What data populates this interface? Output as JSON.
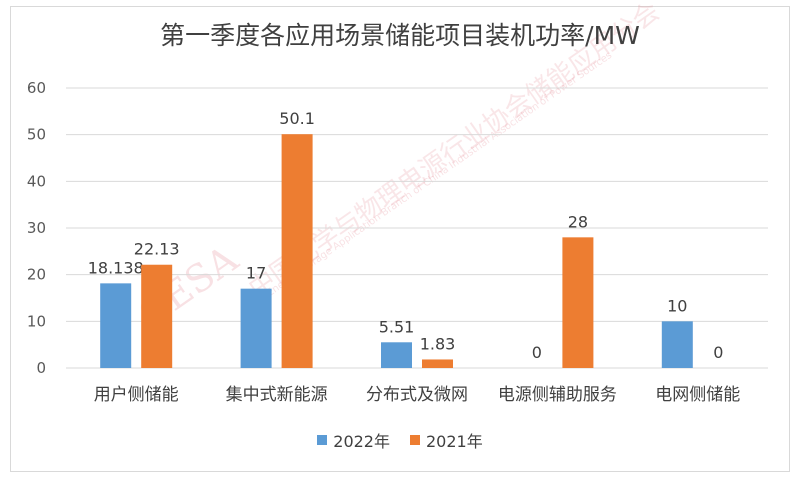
{
  "chart_data": {
    "type": "bar",
    "title": "第一季度各应用场景储能项目装机功率/MW",
    "categories": [
      "用户侧储能",
      "集中式新能源",
      "分布式及微网",
      "电源侧辅助服务",
      "电网侧储能"
    ],
    "series": [
      {
        "name": "2022年",
        "color": "#5b9bd5",
        "values": [
          18.138,
          17,
          5.51,
          0,
          10
        ],
        "labels": [
          "18.138",
          "17",
          "5.51",
          "0",
          "10"
        ]
      },
      {
        "name": "2021年",
        "color": "#ed7d31",
        "values": [
          22.13,
          50.1,
          1.83,
          28,
          0
        ],
        "labels": [
          "22.13",
          "50.1",
          "1.83",
          "28",
          "0"
        ]
      }
    ],
    "ylim": [
      0,
      60
    ],
    "yticks": [
      0,
      10,
      20,
      30,
      40,
      50,
      60
    ],
    "grid": true,
    "legend_position": "bottom"
  },
  "watermark": {
    "logo": "CESA",
    "org_cn": "中国化学与物理电源行业协会储能应用分会",
    "org_en": "Energy Storage Application Branch of China Industrial Association of Power Sources"
  }
}
